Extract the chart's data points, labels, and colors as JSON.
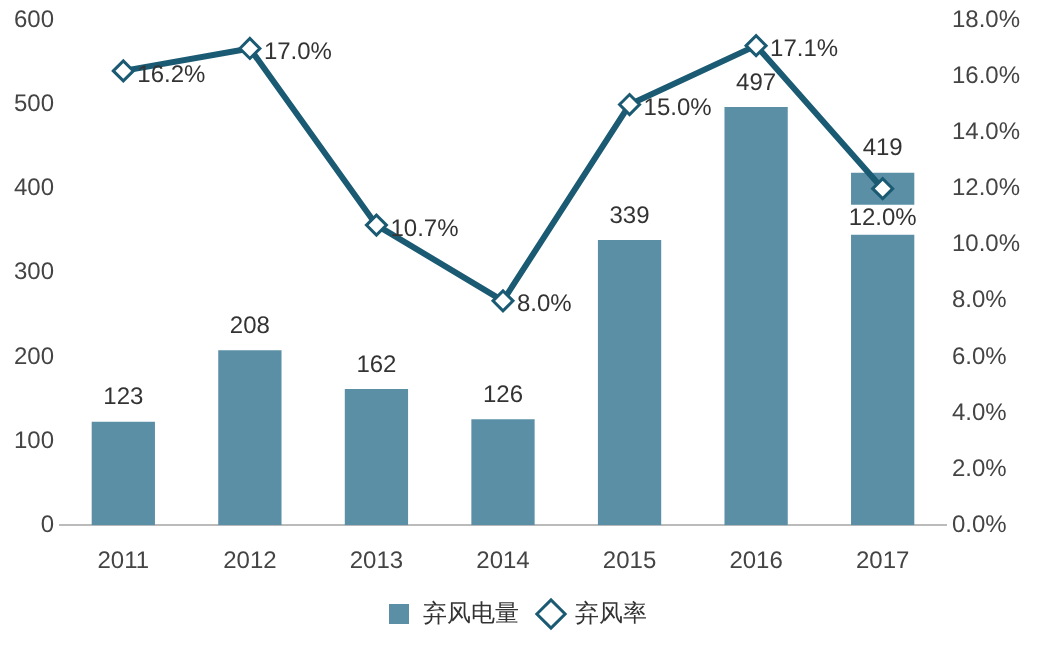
{
  "chart_data": {
    "type": "bar",
    "categories": [
      "2011",
      "2012",
      "2013",
      "2014",
      "2015",
      "2016",
      "2017"
    ],
    "series": [
      {
        "name": "弃风电量",
        "color": "#5b8fa6",
        "values": [
          123,
          208,
          162,
          126,
          339,
          497,
          419
        ],
        "value_labels": [
          "123",
          "208",
          "162",
          "126",
          "339",
          "497",
          "419"
        ]
      },
      {
        "name": "弃风率",
        "type": "line",
        "axis": "y2",
        "color": "#1b5a73",
        "marker": "diamond",
        "values": [
          16.2,
          17.0,
          10.7,
          8.0,
          15.0,
          17.1,
          12.0
        ],
        "value_labels": [
          "16.2%",
          "17.0%",
          "10.7%",
          "8.0%",
          "15.0%",
          "17.1%",
          "12.0%"
        ]
      }
    ],
    "ylim": [
      0,
      600
    ],
    "yticks": [
      0,
      100,
      200,
      300,
      400,
      500,
      600
    ],
    "y2lim": [
      0,
      18
    ],
    "y2ticks": [
      {
        "value": 0,
        "label": "0.0%"
      },
      {
        "value": 2,
        "label": "2.0%"
      },
      {
        "value": 4,
        "label": "4.0%"
      },
      {
        "value": 6,
        "label": "6.0%"
      },
      {
        "value": 8,
        "label": "8.0%"
      },
      {
        "value": 10,
        "label": "10.0%"
      },
      {
        "value": 12,
        "label": "12.0%"
      },
      {
        "value": 14,
        "label": "14.0%"
      },
      {
        "value": 16,
        "label": "16.0%"
      },
      {
        "value": 18,
        "label": "18.0%"
      }
    ],
    "grid": false,
    "legend": "bottom"
  }
}
